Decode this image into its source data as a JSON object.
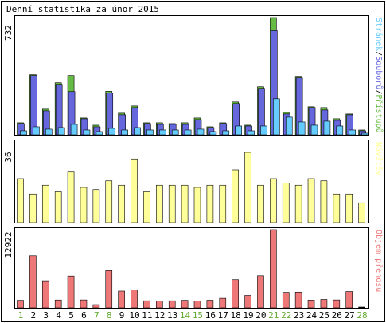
{
  "chart_data": {
    "type": "bar",
    "title": "Denní statistika za únor 2015",
    "categories": [
      "1",
      "2",
      "3",
      "4",
      "5",
      "6",
      "7",
      "8",
      "9",
      "10",
      "11",
      "12",
      "13",
      "14",
      "15",
      "16",
      "17",
      "18",
      "19",
      "20",
      "21",
      "22",
      "23",
      "24",
      "25",
      "26",
      "27",
      "28"
    ],
    "weekend_days": [
      "1",
      "7",
      "8",
      "14",
      "15",
      "21",
      "22",
      "28"
    ],
    "colors": {
      "frame": "#000000",
      "background": "#ffffff",
      "pristupy": "#66bb44",
      "soubory": "#6666dd",
      "stranky": "#66ccff",
      "navstevy": "#ffff99",
      "objem": "#ee7777",
      "weekend_label": "#66aa33",
      "weekday_label": "#000000"
    },
    "panels": [
      {
        "id": "traffic",
        "y_max_label": "732",
        "ylim": [
          0,
          732
        ],
        "legend": [
          {
            "text": "Stránek",
            "color": "#66ccff"
          },
          {
            "text": "Souborů",
            "color": "#6666dd"
          },
          {
            "text": "Přístupů",
            "color": "#66bb44"
          }
        ],
        "legend_separator": "/",
        "series": [
          {
            "name": "Přístupů",
            "values": [
              75,
              375,
              160,
              325,
              370,
              105,
              60,
              272,
              135,
              180,
              75,
              75,
              70,
              75,
              105,
              50,
              75,
              205,
              60,
              300,
              732,
              140,
              365,
              175,
              170,
              100,
              130,
              30
            ]
          },
          {
            "name": "Souborů",
            "values": [
              70,
              370,
              150,
              315,
              270,
              100,
              50,
              262,
              125,
              170,
              70,
              65,
              65,
              65,
              95,
              45,
              70,
              195,
              55,
              290,
              650,
              130,
              355,
              170,
              155,
              90,
              125,
              25
            ]
          },
          {
            "name": "Stránek",
            "values": [
              25,
              50,
              35,
              45,
              65,
              30,
              20,
              40,
              30,
              45,
              30,
              30,
              30,
              30,
              35,
              20,
              25,
              55,
              25,
              55,
              225,
              110,
              80,
              60,
              85,
              55,
              30,
              10
            ]
          }
        ]
      },
      {
        "id": "visits",
        "y_max_label": "36",
        "ylim": [
          0,
          36
        ],
        "legend": [
          {
            "text": "Návštěv",
            "color": "#ffff99"
          }
        ],
        "series": [
          {
            "name": "Návštěv",
            "values": [
              20,
              13,
              17,
              14,
              23,
              16,
              15,
              19,
              17,
              29,
              14,
              17,
              17,
              17,
              16,
              17,
              17,
              24,
              32,
              17,
              20,
              18,
              17,
              20,
              19,
              13,
              13,
              9
            ]
          }
        ]
      },
      {
        "id": "volume",
        "y_max_label": "12922",
        "ylim": [
          0,
          12922
        ],
        "legend": [
          {
            "text": "Objem přenosu",
            "color": "#ee7777"
          }
        ],
        "series": [
          {
            "name": "Objem přenosu",
            "values": [
              1240,
              8600,
              4470,
              1290,
              5250,
              1300,
              520,
              6150,
              2770,
              2990,
              1160,
              1100,
              1160,
              1230,
              1140,
              1250,
              1570,
              4650,
              2040,
              5300,
              12922,
              2560,
              2600,
              1270,
              1380,
              1300,
              2700,
              0
            ]
          }
        ]
      }
    ]
  }
}
